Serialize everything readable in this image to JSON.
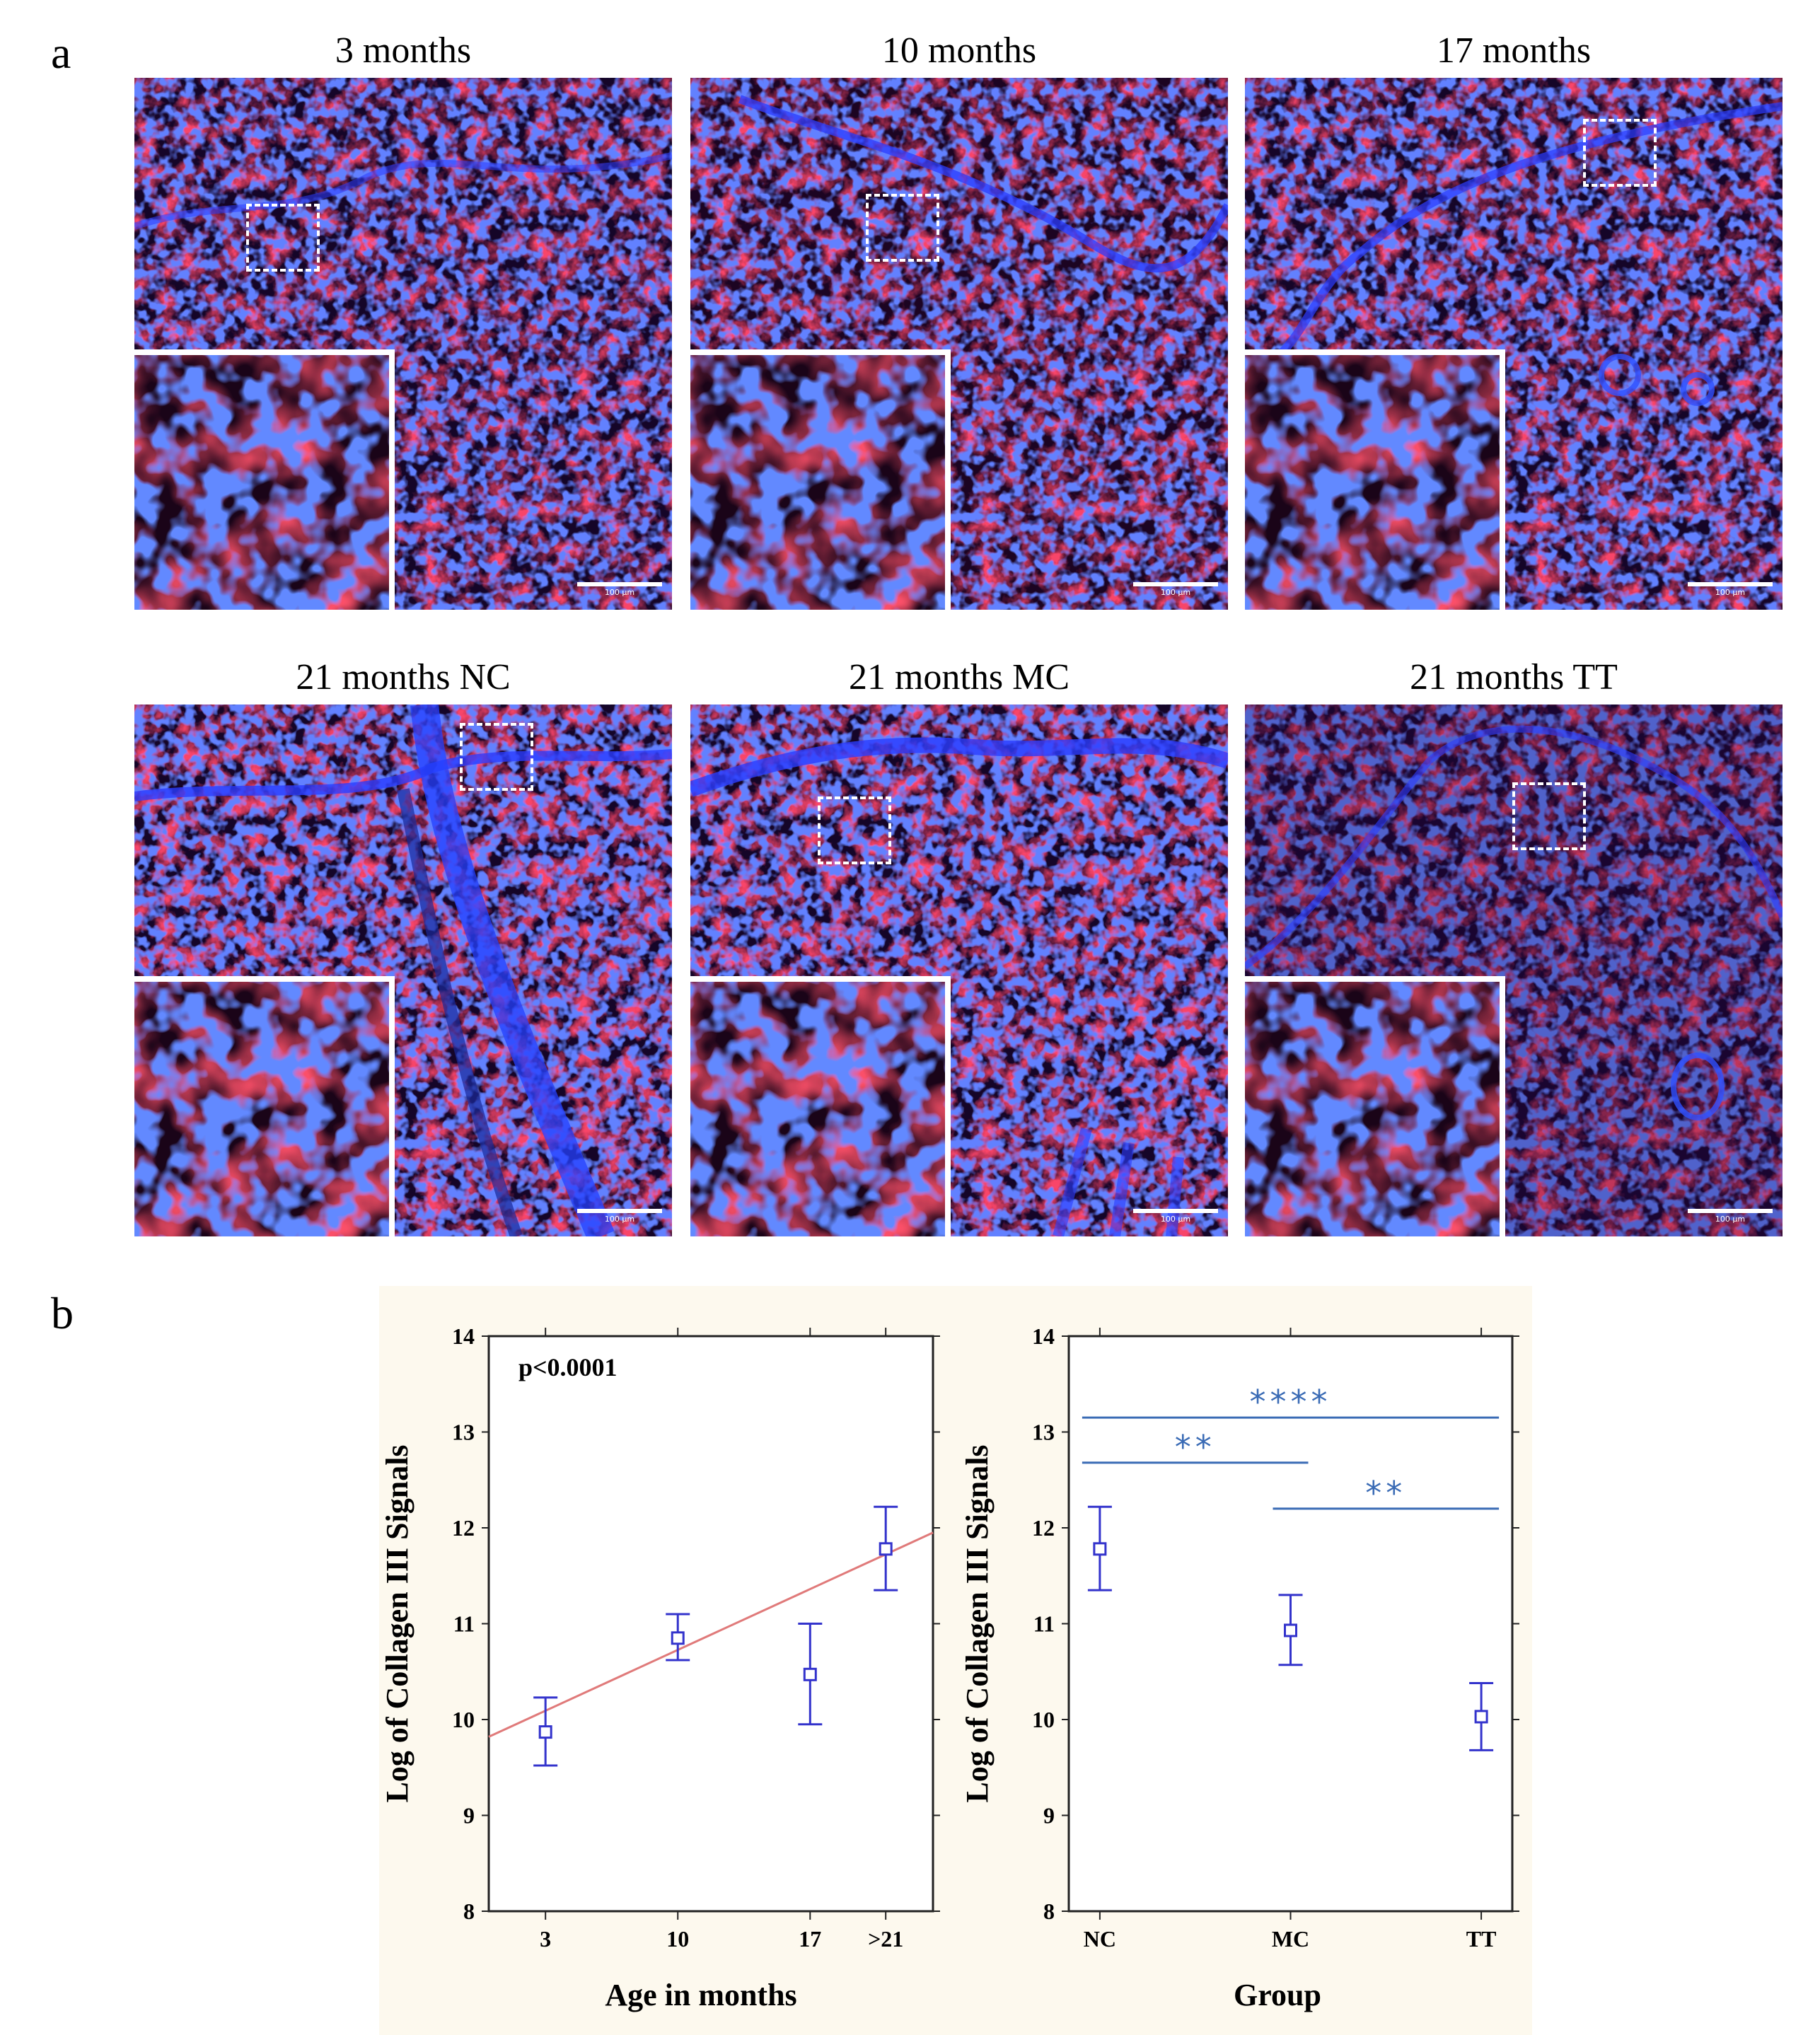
{
  "panel_a": {
    "letter": "a",
    "images": [
      {
        "title": "3 months",
        "scale_label": "100 µm"
      },
      {
        "title": "10 months",
        "scale_label": "100 µm"
      },
      {
        "title": "17 months",
        "scale_label": "100 µm"
      },
      {
        "title": "21 months NC",
        "scale_label": "100 µm"
      },
      {
        "title": "21 months MC",
        "scale_label": "100 µm"
      },
      {
        "title": "21 months TT",
        "scale_label": "100 µm"
      }
    ]
  },
  "panel_b": {
    "letter": "b"
  },
  "colors": {
    "marker": "#3333cc",
    "regression": "#e07a7a",
    "significance": "#3a6bb5",
    "chart_background": "#fdf9ee",
    "collagen_stain": "#e0141e",
    "nuclear_stain": "#1e3cff"
  },
  "chart_data": [
    {
      "type": "scatter",
      "title": "",
      "annotation": "p<0.0001",
      "xlabel": "Age in months",
      "ylabel": "Log of Collagen III Signals",
      "categories": [
        "3",
        "10",
        "17",
        ">21"
      ],
      "x": [
        3,
        10,
        17,
        21
      ],
      "y": [
        9.87,
        10.85,
        10.47,
        11.78
      ],
      "y_lower": [
        9.52,
        10.62,
        9.95,
        11.35
      ],
      "y_upper": [
        10.23,
        11.1,
        11.0,
        12.22
      ],
      "xlim": [
        0,
        23.5
      ],
      "ylim": [
        8,
        14
      ],
      "yticks": [
        "8",
        "9",
        "10",
        "11",
        "12",
        "13",
        "14"
      ],
      "regression": {
        "x": [
          0,
          23.5
        ],
        "y": [
          9.82,
          11.95
        ]
      },
      "grid": false
    },
    {
      "type": "scatter",
      "title": "",
      "xlabel": "Group",
      "ylabel": "Log of Collagen III Signals",
      "categories": [
        "NC",
        "MC",
        "TT"
      ],
      "y": [
        11.78,
        10.93,
        10.03
      ],
      "y_lower": [
        11.35,
        10.57,
        9.68
      ],
      "y_upper": [
        12.22,
        11.3,
        10.38
      ],
      "ylim": [
        8,
        14
      ],
      "yticks": [
        "8",
        "9",
        "10",
        "11",
        "12",
        "13",
        "14"
      ],
      "significance": [
        {
          "from": "NC",
          "to": "TT",
          "label": "****",
          "y": 13.15
        },
        {
          "from": "NC",
          "to": "MC",
          "label": "**",
          "y": 12.68
        },
        {
          "from": "MC",
          "to": "TT",
          "label": "**",
          "y": 12.2
        }
      ],
      "grid": false
    }
  ]
}
